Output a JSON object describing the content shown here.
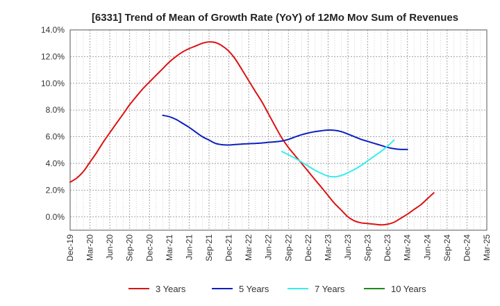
{
  "chart_data": {
    "type": "line",
    "title": "[6331]  Trend of Mean of Growth Rate (YoY) of 12Mo Mov Sum of Revenues",
    "xlabel": "",
    "ylabel": "",
    "x_tick_labels": [
      "Dec-19",
      "Mar-20",
      "Jun-20",
      "Sep-20",
      "Dec-20",
      "Mar-21",
      "Jun-21",
      "Sep-21",
      "Dec-21",
      "Mar-22",
      "Jun-22",
      "Sep-22",
      "Dec-22",
      "Mar-23",
      "Jun-23",
      "Sep-23",
      "Dec-23",
      "Mar-24",
      "Jun-24",
      "Sep-24",
      "Dec-24",
      "Mar-25"
    ],
    "y_tick_labels": [
      "14.0%",
      "12.0%",
      "10.0%",
      "8.0%",
      "6.0%",
      "4.0%",
      "2.0%",
      "0.0%"
    ],
    "ylim": [
      -1.0,
      14.0
    ],
    "y_ticks": [
      14,
      12,
      10,
      8,
      6,
      4,
      2,
      0
    ],
    "grid": true,
    "legend_position": "bottom",
    "series": [
      {
        "name": "3 Years",
        "color": "#dd1111",
        "points": [
          [
            0,
            2.6
          ],
          [
            0.33,
            2.9
          ],
          [
            0.67,
            3.4
          ],
          [
            1,
            4.1
          ],
          [
            1.33,
            4.8
          ],
          [
            1.67,
            5.6
          ],
          [
            2,
            6.3
          ],
          [
            2.33,
            7.0
          ],
          [
            2.67,
            7.7
          ],
          [
            3,
            8.4
          ],
          [
            3.33,
            9.0
          ],
          [
            3.67,
            9.6
          ],
          [
            4,
            10.1
          ],
          [
            4.33,
            10.6
          ],
          [
            4.67,
            11.1
          ],
          [
            5,
            11.6
          ],
          [
            5.33,
            12.0
          ],
          [
            5.67,
            12.35
          ],
          [
            6,
            12.6
          ],
          [
            6.33,
            12.8
          ],
          [
            6.67,
            13.0
          ],
          [
            7,
            13.1
          ],
          [
            7.33,
            13.05
          ],
          [
            7.67,
            12.8
          ],
          [
            8,
            12.4
          ],
          [
            8.33,
            11.8
          ],
          [
            8.67,
            11.0
          ],
          [
            9,
            10.2
          ],
          [
            9.33,
            9.4
          ],
          [
            9.67,
            8.6
          ],
          [
            10,
            7.7
          ],
          [
            10.33,
            6.8
          ],
          [
            10.67,
            5.9
          ],
          [
            11,
            5.2
          ],
          [
            11.33,
            4.6
          ],
          [
            11.67,
            4.0
          ],
          [
            12,
            3.4
          ],
          [
            12.33,
            2.8
          ],
          [
            12.67,
            2.2
          ],
          [
            13,
            1.6
          ],
          [
            13.33,
            1.0
          ],
          [
            13.67,
            0.5
          ],
          [
            14,
            0.0
          ],
          [
            14.33,
            -0.3
          ],
          [
            14.67,
            -0.45
          ],
          [
            15,
            -0.5
          ],
          [
            15.33,
            -0.55
          ],
          [
            15.67,
            -0.6
          ],
          [
            16,
            -0.55
          ],
          [
            16.33,
            -0.4
          ],
          [
            16.67,
            -0.1
          ],
          [
            17,
            0.2
          ],
          [
            17.33,
            0.55
          ],
          [
            17.67,
            0.9
          ],
          [
            18,
            1.35
          ],
          [
            18.33,
            1.8
          ]
        ]
      },
      {
        "name": "5 Years",
        "color": "#0b1fc0",
        "points": [
          [
            4.67,
            7.6
          ],
          [
            5,
            7.5
          ],
          [
            5.33,
            7.3
          ],
          [
            5.67,
            7.0
          ],
          [
            6,
            6.7
          ],
          [
            6.33,
            6.35
          ],
          [
            6.67,
            6.0
          ],
          [
            7,
            5.75
          ],
          [
            7.33,
            5.5
          ],
          [
            7.67,
            5.4
          ],
          [
            8,
            5.38
          ],
          [
            8.33,
            5.42
          ],
          [
            8.67,
            5.45
          ],
          [
            9,
            5.48
          ],
          [
            9.33,
            5.5
          ],
          [
            9.67,
            5.53
          ],
          [
            10,
            5.58
          ],
          [
            10.33,
            5.62
          ],
          [
            10.67,
            5.68
          ],
          [
            11,
            5.8
          ],
          [
            11.33,
            5.98
          ],
          [
            11.67,
            6.15
          ],
          [
            12,
            6.28
          ],
          [
            12.33,
            6.38
          ],
          [
            12.67,
            6.45
          ],
          [
            13,
            6.5
          ],
          [
            13.33,
            6.48
          ],
          [
            13.67,
            6.38
          ],
          [
            14,
            6.2
          ],
          [
            14.33,
            6.0
          ],
          [
            14.67,
            5.8
          ],
          [
            15,
            5.65
          ],
          [
            15.33,
            5.5
          ],
          [
            15.67,
            5.35
          ],
          [
            16,
            5.2
          ],
          [
            16.33,
            5.1
          ],
          [
            16.67,
            5.05
          ],
          [
            17,
            5.05
          ]
        ]
      },
      {
        "name": "7 Years",
        "color": "#33eeee",
        "points": [
          [
            10.67,
            4.9
          ],
          [
            11,
            4.65
          ],
          [
            11.33,
            4.4
          ],
          [
            11.67,
            4.1
          ],
          [
            12,
            3.8
          ],
          [
            12.33,
            3.5
          ],
          [
            12.67,
            3.25
          ],
          [
            13,
            3.05
          ],
          [
            13.33,
            3.0
          ],
          [
            13.67,
            3.1
          ],
          [
            14,
            3.3
          ],
          [
            14.33,
            3.55
          ],
          [
            14.67,
            3.85
          ],
          [
            15,
            4.2
          ],
          [
            15.33,
            4.55
          ],
          [
            15.67,
            4.9
          ],
          [
            16,
            5.3
          ],
          [
            16.33,
            5.75
          ]
        ]
      },
      {
        "name": "10 Years",
        "color": "#1a8a1a",
        "points": []
      }
    ]
  }
}
